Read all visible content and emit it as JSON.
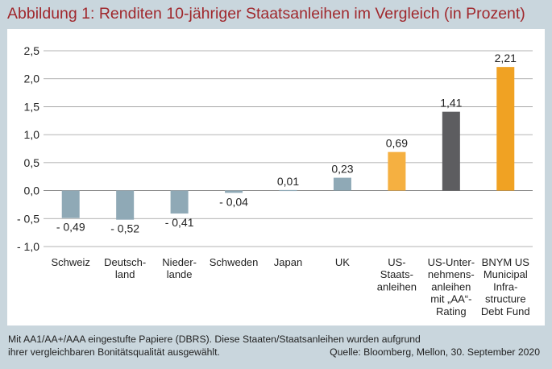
{
  "title": "Abbildung 1: Renditen 10-jähriger Staatsanleihen im Vergleich (in Prozent)",
  "footnote": {
    "line1": "Mit AA1/AA+/AAA eingestufte Papiere (DBRS). Diese Staaten/Staatsanleihen wurden aufgrund",
    "line2": "ihrer vergleichbaren Bonitätsqualität ausgewählt.",
    "source": "Quelle: Bloomberg, Mellon, 30. September 2020"
  },
  "chart_data": {
    "type": "bar",
    "title": "Abbildung 1: Renditen 10-jähriger Staatsanleihen im Vergleich (in Prozent)",
    "xlabel": "",
    "ylabel": "",
    "ylim": [
      -1.0,
      2.5
    ],
    "yticks": [
      2.5,
      2.0,
      1.5,
      1.0,
      0.5,
      0.0,
      -0.5,
      -1.0
    ],
    "ytick_labels": [
      "2,5",
      "2,0",
      "1,5",
      "1,0",
      "0,5",
      "0,0",
      "- 0,5",
      "- 1,0"
    ],
    "grid": true,
    "legend": "none",
    "categories": [
      [
        "Schweiz"
      ],
      [
        "Deutsch-",
        "land"
      ],
      [
        "Nieder-",
        "lande"
      ],
      [
        "Schweden"
      ],
      [
        "Japan"
      ],
      [
        "UK"
      ],
      [
        "US-",
        "Staats-",
        "anleihen"
      ],
      [
        "US-Unter-",
        "nehmens-",
        "anleihen",
        "mit „AA“-",
        "Rating"
      ],
      [
        "BNYM US",
        "Municipal",
        "Infra-",
        "structure",
        "Debt Fund"
      ]
    ],
    "values": [
      -0.49,
      -0.52,
      -0.41,
      -0.04,
      0.01,
      0.23,
      0.69,
      1.41,
      2.21
    ],
    "value_labels": [
      "- 0,49",
      "- 0,52",
      "- 0,41",
      "- 0,04",
      "0,01",
      "0,23",
      "0,69",
      "1,41",
      "2,21"
    ],
    "colors": [
      "#8fa9b6",
      "#8fa9b6",
      "#8fa9b6",
      "#8fa9b6",
      "#8fa9b6",
      "#8fa9b6",
      "#f5b041",
      "#5d5d60",
      "#f0a223"
    ]
  }
}
